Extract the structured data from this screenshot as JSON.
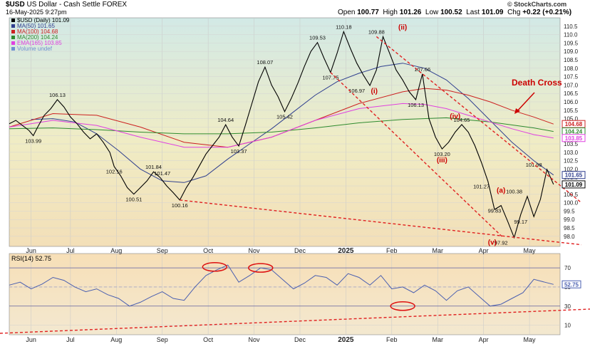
{
  "header": {
    "symbol": "$USD",
    "name": "US Dollar - Cash Settle FOREX",
    "date": "16-May-2025 9:27pm",
    "ohlc": {
      "open_label": "Open",
      "open": "100.77",
      "high_label": "High",
      "high": "101.26",
      "low_label": "Low",
      "low": "100.52",
      "last_label": "Last",
      "last": "101.09",
      "chg_label": "Chg",
      "chg": "+0.22 (+0.21%)"
    },
    "brand": "© StockCharts.com"
  },
  "chart_data": [
    {
      "type": "line",
      "panel": "price",
      "scale": "linear",
      "ylim": [
        97.4,
        111.0
      ],
      "y_ticks": [
        98.0,
        98.5,
        99.0,
        99.5,
        100.0,
        100.5,
        101.0,
        101.5,
        102.0,
        102.5,
        103.0,
        103.5,
        104.0,
        104.5,
        105.0,
        105.5,
        106.0,
        106.5,
        107.0,
        107.5,
        108.0,
        108.5,
        109.0,
        109.5,
        110.0,
        110.5
      ],
      "x_ticks": [
        "Jun",
        "Jul",
        "Aug",
        "Sep",
        "Oct",
        "Nov",
        "Dec",
        "2025",
        "Feb",
        "Mar",
        "Apr",
        "May"
      ],
      "legend": [
        {
          "label": "$USD (Daily) 101.09",
          "color": "#000000"
        },
        {
          "label": "MA(50) 101.65",
          "color": "#2f3f8f"
        },
        {
          "label": "MA(100) 104.68",
          "color": "#cc2020"
        },
        {
          "label": "MA(200) 104.24",
          "color": "#2e8b2e"
        },
        {
          "label": "EMA(165) 103.85",
          "color": "#e040e0"
        },
        {
          "label": "Volume undef",
          "color": "#6f8fd0"
        }
      ],
      "last_value_tags": [
        {
          "value": "104.68",
          "color": "#cc2020"
        },
        {
          "value": "104.24",
          "color": "#2e8b2e"
        },
        {
          "value": "103.85",
          "color": "#e040e0"
        },
        {
          "value": "101.65",
          "color": "#2f3f8f"
        },
        {
          "value": "101.09",
          "color": "#000000"
        }
      ],
      "series": [
        {
          "name": "$USD (Daily)",
          "color": "#000000",
          "x": [
            0,
            3,
            6,
            9,
            11,
            13,
            16,
            19,
            22,
            25,
            28,
            31,
            34,
            37,
            40,
            43,
            46,
            48,
            51,
            54,
            57,
            60,
            63,
            66,
            69,
            72,
            75,
            78,
            81,
            84,
            87,
            90,
            93,
            96,
            99,
            102,
            105,
            108,
            111,
            114,
            117,
            120,
            123,
            126,
            129,
            132,
            135,
            138,
            141,
            144,
            147,
            150,
            153,
            156,
            159,
            162,
            165,
            168,
            171,
            174,
            177,
            180,
            183,
            186,
            189,
            192,
            195,
            198,
            201,
            204,
            207,
            210,
            213,
            216,
            219,
            222,
            225,
            228,
            231,
            234,
            237,
            240,
            243,
            246,
            249
          ],
          "y": [
            104.7,
            104.9,
            104.6,
            104.3,
            103.99,
            104.5,
            105.2,
            105.6,
            106.13,
            105.7,
            105.1,
            104.7,
            104.2,
            103.8,
            104.1,
            103.6,
            103.0,
            102.16,
            101.6,
            100.9,
            100.51,
            100.9,
            101.3,
            101.84,
            101.5,
            101.0,
            100.6,
            100.16,
            100.9,
            101.5,
            102.2,
            102.9,
            103.4,
            103.9,
            104.64,
            103.9,
            103.37,
            104.6,
            105.9,
            107.2,
            108.07,
            107.0,
            106.3,
            105.42,
            106.2,
            107.1,
            108.1,
            109.0,
            109.53,
            108.6,
            107.75,
            108.9,
            110.18,
            109.2,
            108.3,
            107.6,
            106.97,
            107.9,
            109.88,
            108.9,
            107.9,
            107.3,
            106.6,
            106.13,
            107.66,
            105.0,
            103.9,
            103.2,
            103.6,
            104.2,
            104.65,
            104.2,
            103.4,
            102.4,
            101.27,
            99.6,
            99.83,
            98.9,
            97.92,
            99.3,
            100.38,
            99.17,
            100.2,
            101.98,
            101.09
          ]
        },
        {
          "name": "MA(50)",
          "color": "#2f3f8f",
          "x": [
            10,
            20,
            30,
            40,
            50,
            60,
            70,
            80,
            90,
            100,
            110,
            120,
            130,
            140,
            150,
            160,
            170,
            180,
            190,
            200,
            210,
            220,
            230,
            240,
            249
          ],
          "y": [
            104.95,
            105.0,
            104.8,
            104.1,
            103.1,
            102.0,
            101.3,
            101.2,
            101.6,
            102.6,
            103.5,
            104.4,
            105.4,
            106.4,
            107.2,
            107.7,
            108.1,
            108.3,
            108.0,
            107.3,
            106.2,
            104.9,
            103.6,
            102.5,
            101.65
          ]
        },
        {
          "name": "MA(100)",
          "color": "#cc2020",
          "x": [
            0,
            20,
            40,
            60,
            80,
            100,
            120,
            140,
            160,
            180,
            190,
            200,
            210,
            220,
            230,
            240,
            249
          ],
          "y": [
            104.5,
            105.3,
            105.2,
            104.5,
            103.6,
            103.3,
            103.9,
            104.9,
            105.9,
            106.6,
            106.8,
            106.7,
            106.4,
            106.0,
            105.5,
            105.1,
            104.68
          ]
        },
        {
          "name": "MA(200)",
          "color": "#2e8b2e",
          "x": [
            0,
            20,
            40,
            60,
            80,
            100,
            120,
            140,
            160,
            180,
            200,
            220,
            240,
            249
          ],
          "y": [
            104.4,
            104.45,
            104.35,
            104.2,
            104.1,
            104.1,
            104.2,
            104.45,
            104.75,
            104.95,
            105.05,
            104.8,
            104.45,
            104.24
          ]
        },
        {
          "name": "EMA(165)",
          "color": "#e040e0",
          "x": [
            0,
            20,
            40,
            60,
            80,
            100,
            120,
            140,
            160,
            180,
            190,
            200,
            210,
            220,
            230,
            240,
            249
          ],
          "y": [
            104.5,
            104.9,
            104.6,
            103.9,
            103.3,
            103.3,
            103.9,
            104.9,
            105.6,
            105.9,
            105.85,
            105.6,
            105.2,
            104.8,
            104.4,
            104.05,
            103.85
          ]
        }
      ],
      "point_labels": [
        {
          "text": "103.99",
          "x": 11,
          "y": 103.99,
          "pos": "below"
        },
        {
          "text": "106.13",
          "x": 22,
          "y": 106.13,
          "pos": "above"
        },
        {
          "text": "102.16",
          "x": 48,
          "y": 102.16,
          "pos": "below"
        },
        {
          "text": "100.51",
          "x": 57,
          "y": 100.51,
          "pos": "below"
        },
        {
          "text": "101.84",
          "x": 66,
          "y": 101.84,
          "pos": "above"
        },
        {
          "text": "101.47",
          "x": 70,
          "y": 101.47,
          "pos": "above"
        },
        {
          "text": "100.16",
          "x": 78,
          "y": 100.16,
          "pos": "below"
        },
        {
          "text": "104.64",
          "x": 99,
          "y": 104.64,
          "pos": "above"
        },
        {
          "text": "103.37",
          "x": 105,
          "y": 103.37,
          "pos": "below"
        },
        {
          "text": "108.07",
          "x": 117,
          "y": 108.07,
          "pos": "above"
        },
        {
          "text": "105.42",
          "x": 126,
          "y": 105.42,
          "pos": "below"
        },
        {
          "text": "109.53",
          "x": 141,
          "y": 109.53,
          "pos": "above"
        },
        {
          "text": "107.75",
          "x": 147,
          "y": 107.75,
          "pos": "below"
        },
        {
          "text": "110.18",
          "x": 153,
          "y": 110.18,
          "pos": "above"
        },
        {
          "text": "106.97",
          "x": 159,
          "y": 106.97,
          "pos": "below"
        },
        {
          "text": "109.88",
          "x": 168,
          "y": 109.88,
          "pos": "above"
        },
        {
          "text": "107.66",
          "x": 189,
          "y": 107.66,
          "pos": "above"
        },
        {
          "text": "106.13",
          "x": 186,
          "y": 106.13,
          "pos": "below"
        },
        {
          "text": "103.20",
          "x": 198,
          "y": 103.2,
          "pos": "below"
        },
        {
          "text": "104.65",
          "x": 207,
          "y": 104.65,
          "pos": "above"
        },
        {
          "text": "101.27",
          "x": 216,
          "y": 101.27,
          "pos": "below"
        },
        {
          "text": "99.83",
          "x": 222,
          "y": 99.83,
          "pos": "below"
        },
        {
          "text": "97.92",
          "x": 225,
          "y": 97.92,
          "pos": "below"
        },
        {
          "text": "100.38",
          "x": 231,
          "y": 100.38,
          "pos": "above"
        },
        {
          "text": "99.17",
          "x": 234,
          "y": 99.17,
          "pos": "below"
        },
        {
          "text": "101.98",
          "x": 240,
          "y": 101.98,
          "pos": "above"
        }
      ],
      "annotations": [
        {
          "text": "Death Cross",
          "color": "#cc0000"
        },
        {
          "text": "(i)",
          "x": 167,
          "y": 106.5
        },
        {
          "text": "(ii)",
          "x": 180,
          "y": 110.3
        },
        {
          "text": "(iii)",
          "x": 198,
          "y": 102.4
        },
        {
          "text": "(iv)",
          "x": 204,
          "y": 105.0
        },
        {
          "text": "(v)",
          "x": 221,
          "y": 97.5
        },
        {
          "text": "(a)",
          "x": 225,
          "y": 100.6
        }
      ]
    },
    {
      "type": "line",
      "panel": "indicator",
      "title": "RSI(14) 52.75",
      "ylim": [
        0,
        85
      ],
      "y_ticks": [
        10,
        30,
        50,
        70
      ],
      "reference_lines": [
        70,
        30
      ],
      "last_value_tag": "52.75",
      "series": [
        {
          "name": "RSI(14)",
          "color": "#4a5fb0",
          "x": [
            0,
            5,
            10,
            15,
            20,
            25,
            30,
            35,
            40,
            45,
            50,
            55,
            60,
            65,
            70,
            75,
            80,
            85,
            90,
            95,
            100,
            105,
            110,
            115,
            120,
            125,
            130,
            135,
            140,
            145,
            150,
            155,
            160,
            165,
            170,
            175,
            180,
            185,
            190,
            195,
            200,
            205,
            210,
            215,
            220,
            225,
            230,
            235,
            240,
            245,
            249
          ],
          "y": [
            52,
            55,
            48,
            53,
            60,
            57,
            50,
            45,
            48,
            42,
            38,
            30,
            34,
            40,
            45,
            38,
            36,
            50,
            62,
            68,
            73,
            55,
            62,
            70,
            68,
            58,
            48,
            54,
            62,
            60,
            52,
            64,
            60,
            52,
            62,
            48,
            50,
            44,
            52,
            46,
            36,
            46,
            50,
            40,
            30,
            32,
            38,
            44,
            58,
            55,
            52.75
          ]
        }
      ]
    }
  ]
}
